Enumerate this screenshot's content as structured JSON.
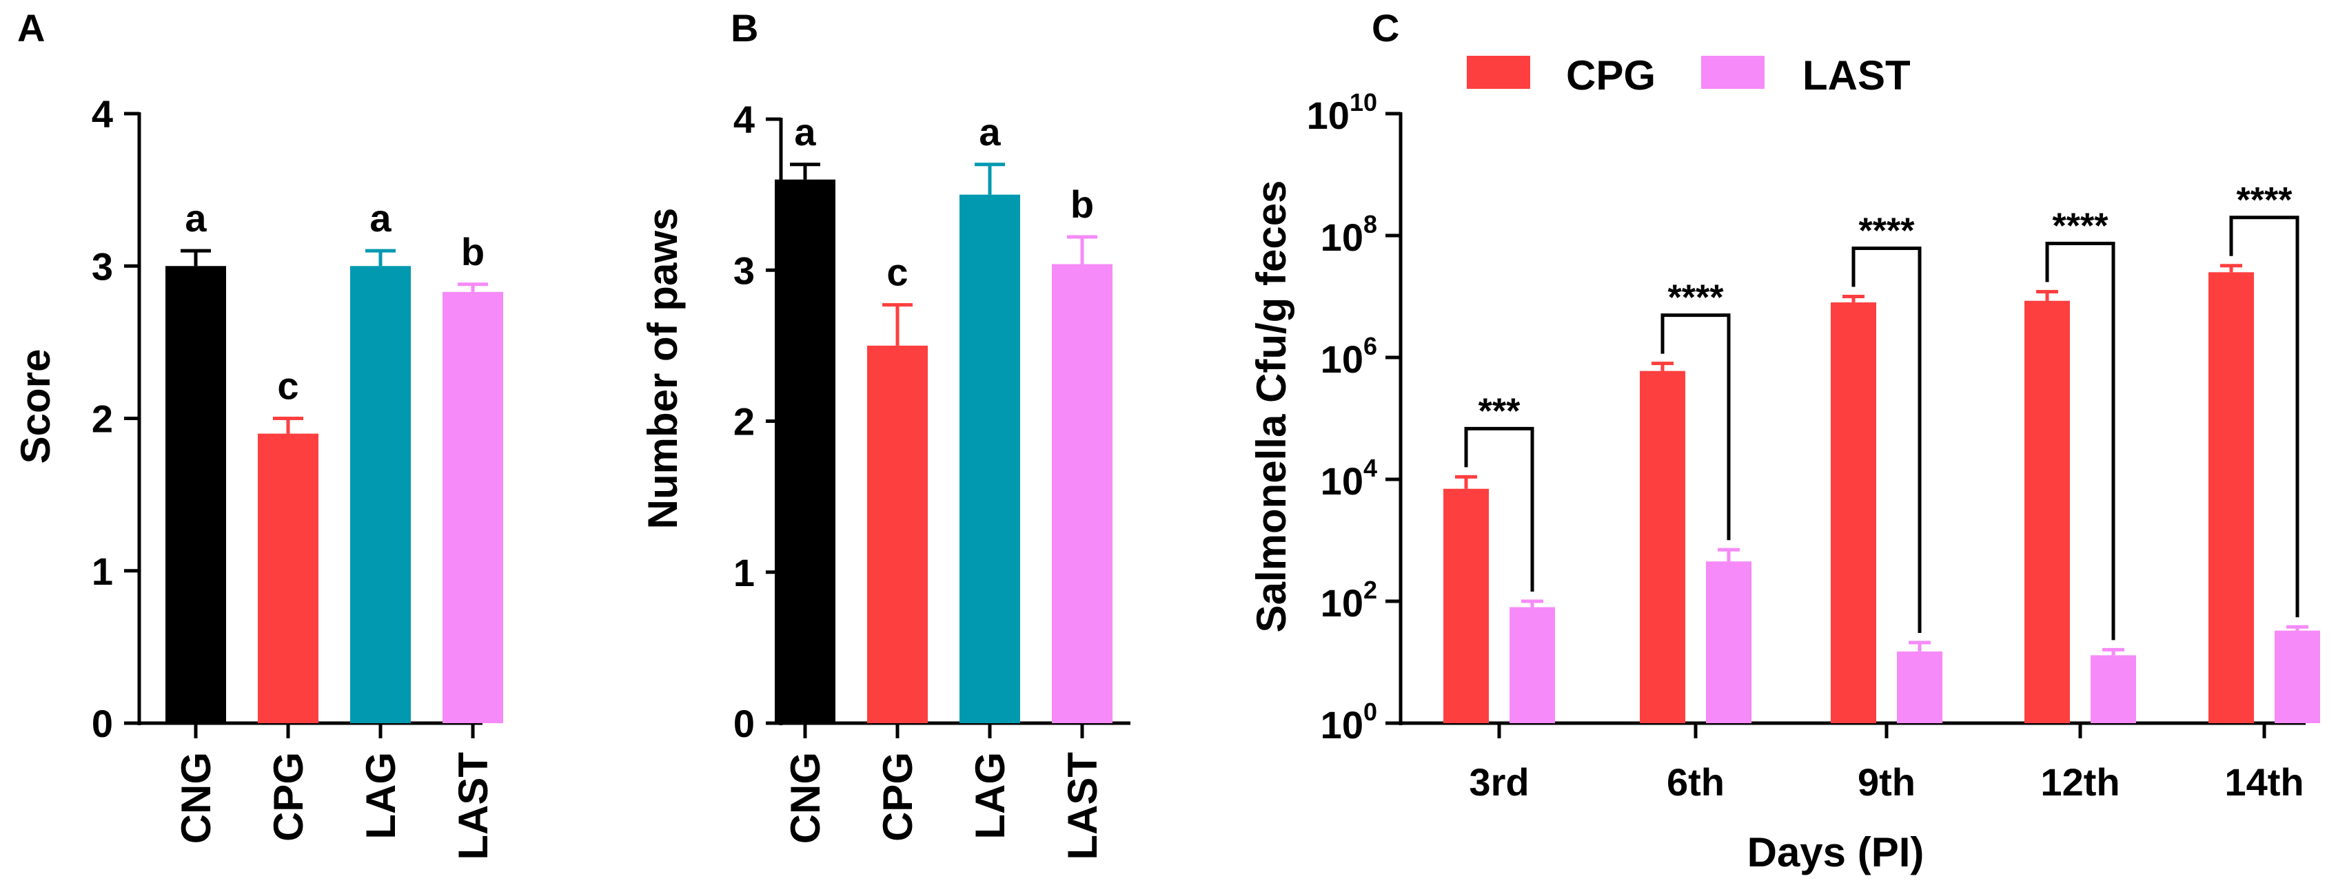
{
  "colors": {
    "black": "#000000",
    "red": "#fe3f3f",
    "teal": "#0099b0",
    "pink": "#f68af8"
  },
  "chart_data": [
    {
      "panel_label": "A",
      "type": "bar",
      "ylabel": "Score",
      "ylim": [
        0,
        4
      ],
      "yticks": [
        "0",
        "1",
        "2",
        "3",
        "4"
      ],
      "categories": [
        "CNG",
        "CPG",
        "LAG",
        "LAST"
      ],
      "values": [
        3.0,
        1.9,
        3.0,
        2.83
      ],
      "errors": [
        0.1,
        0.1,
        0.1,
        0.05
      ],
      "letters": [
        "a",
        "c",
        "a",
        "b"
      ],
      "bar_colors": [
        "black",
        "red",
        "teal",
        "pink"
      ]
    },
    {
      "panel_label": "B",
      "type": "bar",
      "ylabel": "Number of paws",
      "ylim": [
        0,
        4
      ],
      "yticks": [
        "0",
        "1",
        "2",
        "3",
        "4"
      ],
      "categories": [
        "CNG",
        "CPG",
        "LAG",
        "LAST"
      ],
      "values": [
        3.6,
        2.5,
        3.5,
        3.04
      ],
      "errors": [
        0.1,
        0.27,
        0.2,
        0.18
      ],
      "letters": [
        "a",
        "c",
        "a",
        "b"
      ],
      "bar_colors": [
        "black",
        "red",
        "teal",
        "pink"
      ]
    },
    {
      "panel_label": "C",
      "type": "bar",
      "yscale": "log10",
      "ylabel": "Salmonella Cfu/g feces",
      "xlabel": "Days (PI)",
      "ylim": [
        1,
        10000000000
      ],
      "ytick_base": "10",
      "ytick_exponents": [
        "0",
        "2",
        "4",
        "6",
        "8",
        "10"
      ],
      "categories": [
        "3rd",
        "6th",
        "9th",
        "12th",
        "14th"
      ],
      "series": [
        {
          "name": "CPG",
          "color": "red",
          "values": [
            7000,
            600000,
            8000000,
            8500000,
            25000000
          ],
          "error_tops": [
            11000,
            800000,
            10000000,
            12000000,
            32000000
          ]
        },
        {
          "name": "LAST",
          "color": "pink",
          "values": [
            80,
            450,
            15,
            13,
            33
          ],
          "error_tops": [
            100,
            700,
            21,
            16,
            38
          ]
        }
      ],
      "significance": [
        "***",
        "****",
        "****",
        "****",
        "****"
      ],
      "legend": [
        "CPG",
        "LAST"
      ],
      "legend_position": "top"
    }
  ]
}
